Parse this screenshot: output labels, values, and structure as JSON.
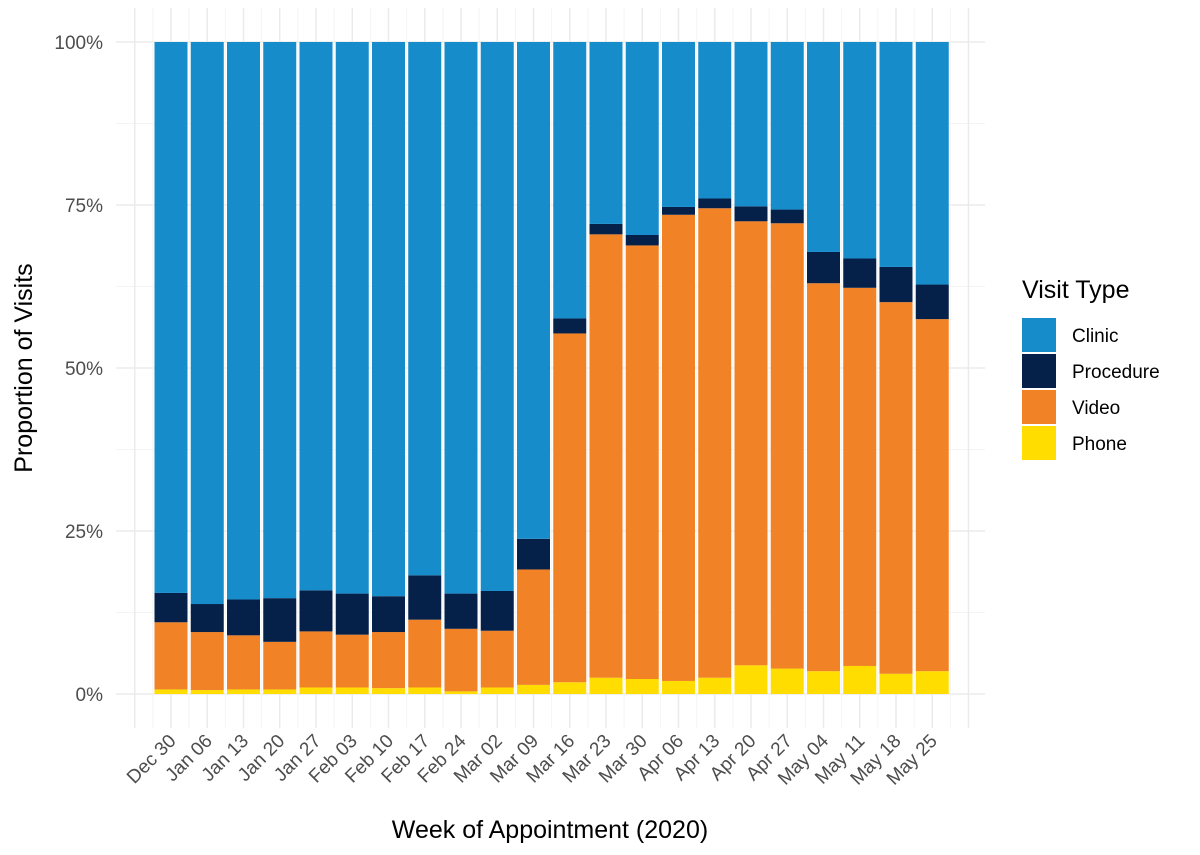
{
  "chart_data": {
    "type": "bar",
    "stacked": true,
    "normalized": true,
    "xlabel": "Week of Appointment (2020)",
    "ylabel": "Proportion of Visits",
    "ylim": [
      0,
      1
    ],
    "yticks": [
      "0%",
      "25%",
      "50%",
      "75%",
      "100%"
    ],
    "grid": true,
    "legend_position": "right",
    "legend_title": "Visit Type",
    "categories": [
      "Dec 30",
      "Jan 06",
      "Jan 13",
      "Jan 20",
      "Jan 27",
      "Feb 03",
      "Feb 10",
      "Feb 17",
      "Feb 24",
      "Mar 02",
      "Mar 09",
      "Mar 16",
      "Mar 23",
      "Mar 30",
      "Apr 06",
      "Apr 13",
      "Apr 20",
      "Apr 27",
      "May 04",
      "May 11",
      "May 18",
      "May 25"
    ],
    "series": [
      {
        "name": "Phone",
        "color": "#FFDD00",
        "values": [
          0.007,
          0.006,
          0.007,
          0.007,
          0.01,
          0.01,
          0.009,
          0.01,
          0.004,
          0.01,
          0.014,
          0.018,
          0.025,
          0.023,
          0.02,
          0.025,
          0.044,
          0.039,
          0.035,
          0.043,
          0.031,
          0.035
        ]
      },
      {
        "name": "Video",
        "color": "#F28226",
        "values": [
          0.103,
          0.089,
          0.083,
          0.073,
          0.086,
          0.081,
          0.086,
          0.104,
          0.096,
          0.087,
          0.177,
          0.535,
          0.68,
          0.665,
          0.715,
          0.72,
          0.681,
          0.683,
          0.595,
          0.58,
          0.57,
          0.54
        ]
      },
      {
        "name": "Procedure",
        "color": "#052049",
        "values": [
          0.045,
          0.043,
          0.055,
          0.067,
          0.063,
          0.063,
          0.055,
          0.068,
          0.054,
          0.061,
          0.047,
          0.023,
          0.016,
          0.016,
          0.012,
          0.015,
          0.023,
          0.021,
          0.048,
          0.045,
          0.054,
          0.053
        ]
      },
      {
        "name": "Clinic",
        "color": "#178CCB",
        "values": [
          0.845,
          0.862,
          0.855,
          0.853,
          0.841,
          0.846,
          0.85,
          0.818,
          0.846,
          0.842,
          0.762,
          0.424,
          0.279,
          0.296,
          0.253,
          0.24,
          0.252,
          0.257,
          0.322,
          0.332,
          0.345,
          0.372
        ]
      }
    ],
    "legend_order": [
      "Clinic",
      "Procedure",
      "Video",
      "Phone"
    ]
  }
}
